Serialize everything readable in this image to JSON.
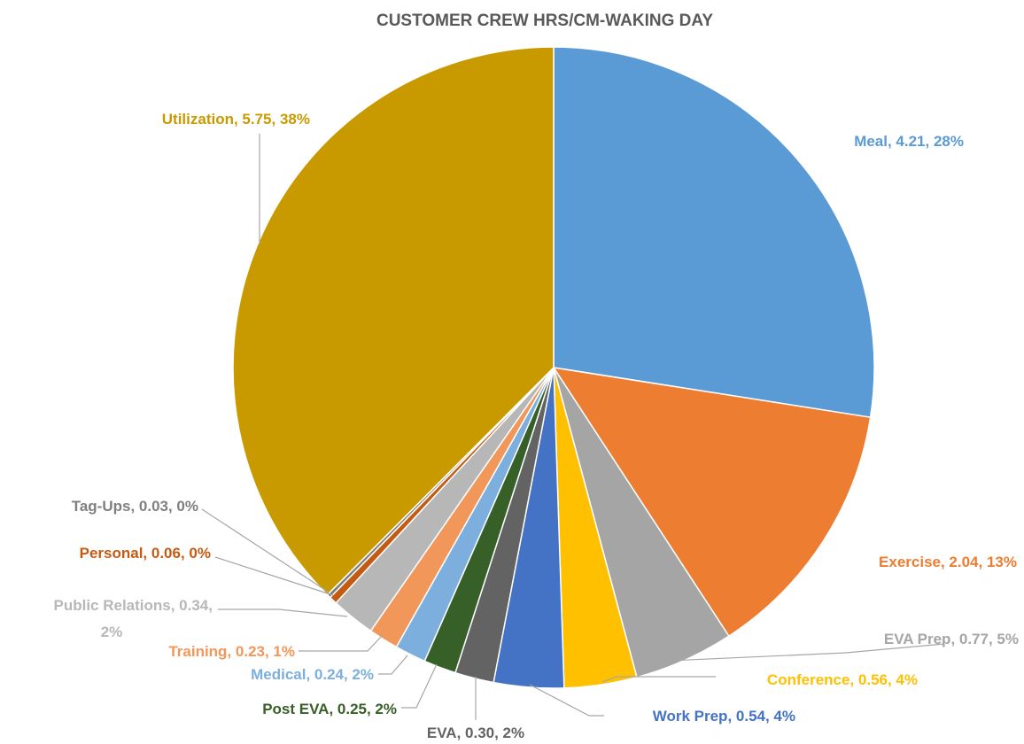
{
  "chart_data": {
    "type": "pie",
    "title": "CUSTOMER CREW HRS/CM-WAKING DAY",
    "slices": [
      {
        "name": "Meal",
        "value": 4.21,
        "percent": "28%",
        "color": "#5B9BD5",
        "label_color": "#5B9BD5",
        "label": [
          "Meal, 4.21, 28%"
        ]
      },
      {
        "name": "Exercise",
        "value": 2.04,
        "percent": "13%",
        "color": "#ED7D31",
        "label_color": "#ED7D31",
        "label": [
          "Exercise, 2.04, 13%"
        ]
      },
      {
        "name": "EVA Prep",
        "value": 0.77,
        "percent": "5%",
        "color": "#A5A5A5",
        "label_color": "#A5A5A5",
        "label": [
          "EVA Prep, 0.77, 5%"
        ]
      },
      {
        "name": "Conference",
        "value": 0.56,
        "percent": "4%",
        "color": "#FFC000",
        "label_color": "#FFC000",
        "label": [
          "Conference, 0.56, 4%"
        ]
      },
      {
        "name": "Work Prep",
        "value": 0.54,
        "percent": "4%",
        "color": "#4472C4",
        "label_color": "#4472C4",
        "label": [
          "Work Prep, 0.54, 4%"
        ]
      },
      {
        "name": "EVA",
        "value": 0.3,
        "percent": "2%",
        "color": "#636363",
        "label_color": "#636363",
        "label": [
          "EVA, 0.30, 2%"
        ]
      },
      {
        "name": "Post EVA",
        "value": 0.25,
        "percent": "2%",
        "color": "#376028",
        "label_color": "#376028",
        "label": [
          "Post EVA, 0.25, 2%"
        ]
      },
      {
        "name": "Medical",
        "value": 0.24,
        "percent": "2%",
        "color": "#7CAFDD",
        "label_color": "#7CAFDD",
        "label": [
          "Medical, 0.24, 2%"
        ]
      },
      {
        "name": "Training",
        "value": 0.23,
        "percent": "1%",
        "color": "#F1975A",
        "label_color": "#F1975A",
        "label": [
          "Training, 0.23, 1%"
        ]
      },
      {
        "name": "Public Relations",
        "value": 0.34,
        "percent": "2%",
        "color": "#B7B7B7",
        "label_color": "#B7B7B7",
        "label": [
          "Public Relations, 0.34,",
          "2%"
        ]
      },
      {
        "name": "Personal",
        "value": 0.06,
        "percent": "0%",
        "color": "#C55A11",
        "label_color": "#C55A11",
        "label": [
          "Personal, 0.06, 0%"
        ]
      },
      {
        "name": "Tag-Ups",
        "value": 0.03,
        "percent": "0%",
        "color": "#7F7F7F",
        "label_color": "#7F7F7F",
        "label": [
          "Tag-Ups, 0.03, 0%"
        ]
      },
      {
        "name": "Utilization",
        "value": 5.75,
        "percent": "38%",
        "color": "#C99A00",
        "label_color": "#C99A00",
        "label": [
          "Utilization, 5.75, 38%"
        ]
      }
    ]
  }
}
